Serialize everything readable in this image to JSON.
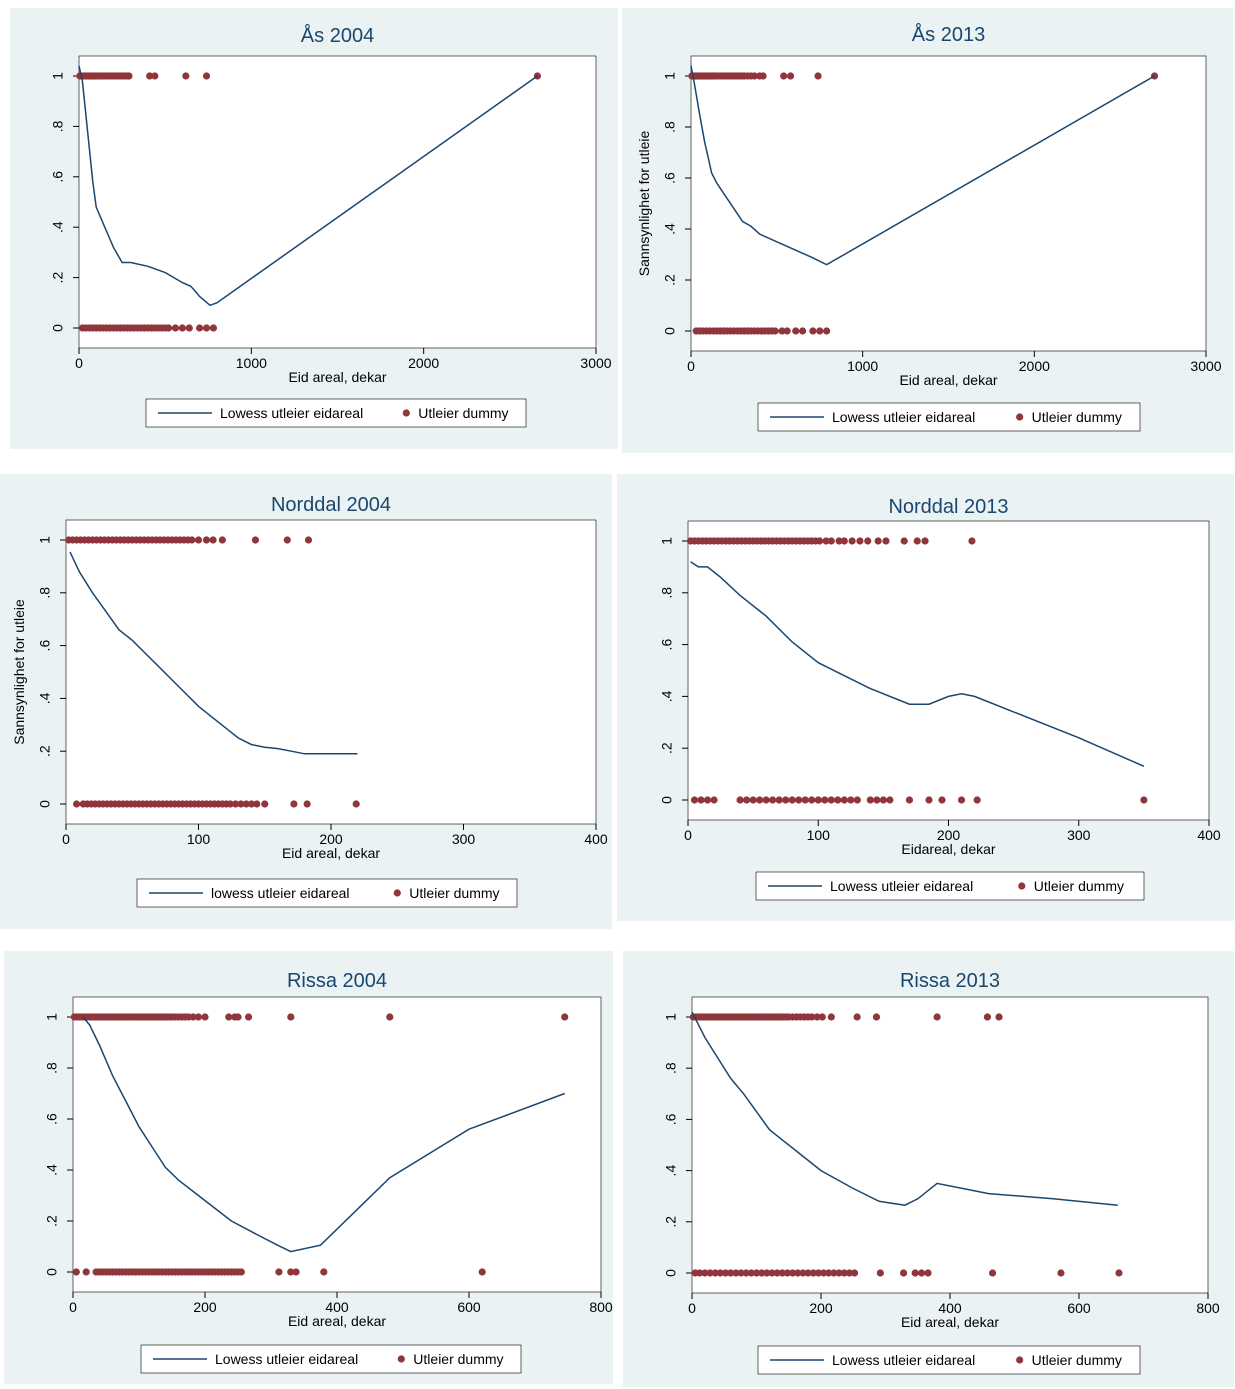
{
  "colors": {
    "background": "#eaf2f3",
    "plot": "#ffffff",
    "line": "#1a476f",
    "dots": "#90353b"
  },
  "chart_data": [
    {
      "type": "scatter",
      "title": "Ås 2004",
      "xlabel": "Eid areal, dekar",
      "ylabel": "",
      "xlim": [
        0,
        3000
      ],
      "ylim": [
        0,
        1
      ],
      "xticks": [
        "0",
        "1000",
        "2000",
        "3000"
      ],
      "yticks": [
        "0",
        ".2",
        ".4",
        ".6",
        ".8",
        "1"
      ],
      "legend": [
        "Lowess utleier eidareal",
        "Utleier dummy"
      ],
      "legend_position": "bottom",
      "line": [
        [
          0,
          1.04
        ],
        [
          20,
          0.98
        ],
        [
          50,
          0.78
        ],
        [
          80,
          0.58
        ],
        [
          100,
          0.48
        ],
        [
          150,
          0.4
        ],
        [
          200,
          0.32
        ],
        [
          250,
          0.26
        ],
        [
          300,
          0.26
        ],
        [
          400,
          0.245
        ],
        [
          500,
          0.22
        ],
        [
          600,
          0.18
        ],
        [
          650,
          0.165
        ],
        [
          700,
          0.125
        ],
        [
          760,
          0.09
        ],
        [
          800,
          0.1
        ],
        [
          2660,
          1.0
        ]
      ],
      "dots_one": [
        5,
        15,
        25,
        35,
        45,
        55,
        65,
        75,
        85,
        95,
        105,
        115,
        125,
        140,
        155,
        170,
        185,
        200,
        215,
        230,
        245,
        260,
        275,
        290,
        410,
        440,
        620,
        740,
        2660
      ],
      "dots_zero": [
        20,
        40,
        60,
        80,
        100,
        120,
        140,
        160,
        180,
        200,
        220,
        240,
        260,
        280,
        300,
        320,
        340,
        360,
        380,
        400,
        420,
        440,
        460,
        480,
        500,
        520,
        560,
        600,
        640,
        700,
        740,
        780
      ]
    },
    {
      "type": "scatter",
      "title": "Ås 2013",
      "xlabel": "Eid areal, dekar",
      "ylabel": "Sannsynlighet for utleie",
      "xlim": [
        0,
        3000
      ],
      "ylim": [
        0,
        1
      ],
      "xticks": [
        "0",
        "1000",
        "2000",
        "3000"
      ],
      "yticks": [
        "0",
        ".2",
        ".4",
        ".6",
        ".8",
        "1"
      ],
      "legend": [
        "Lowess utleier eidareal",
        "Utleier dummy"
      ],
      "legend_position": "bottom",
      "line": [
        [
          0,
          1.04
        ],
        [
          20,
          0.97
        ],
        [
          50,
          0.85
        ],
        [
          80,
          0.74
        ],
        [
          100,
          0.68
        ],
        [
          120,
          0.62
        ],
        [
          150,
          0.58
        ],
        [
          200,
          0.53
        ],
        [
          250,
          0.48
        ],
        [
          300,
          0.43
        ],
        [
          350,
          0.41
        ],
        [
          400,
          0.38
        ],
        [
          500,
          0.35
        ],
        [
          600,
          0.32
        ],
        [
          700,
          0.29
        ],
        [
          790,
          0.26
        ],
        [
          2700,
          1.0
        ]
      ],
      "dots_one": [
        5,
        15,
        25,
        35,
        45,
        55,
        65,
        75,
        85,
        95,
        105,
        115,
        125,
        135,
        145,
        160,
        175,
        190,
        205,
        220,
        235,
        250,
        265,
        280,
        295,
        310,
        330,
        350,
        370,
        400,
        420,
        540,
        580,
        740,
        2700
      ],
      "dots_zero": [
        30,
        50,
        70,
        90,
        110,
        130,
        150,
        170,
        190,
        210,
        230,
        250,
        270,
        290,
        310,
        330,
        350,
        370,
        390,
        410,
        430,
        450,
        470,
        490,
        530,
        560,
        610,
        650,
        710,
        750,
        790
      ]
    },
    {
      "type": "scatter",
      "title": "Norddal 2004",
      "xlabel": "Eid areal, dekar",
      "ylabel": "Sannsynlighet for utleie",
      "xlim": [
        0,
        400
      ],
      "ylim": [
        0,
        1
      ],
      "xticks": [
        "0",
        "100",
        "200",
        "300",
        "400"
      ],
      "yticks": [
        "0",
        ".2",
        ".4",
        ".6",
        ".8",
        "1"
      ],
      "legend": [
        "lowess utleier eidareal",
        "Utleier dummy"
      ],
      "legend_position": "bottom",
      "line": [
        [
          3,
          0.955
        ],
        [
          10,
          0.88
        ],
        [
          20,
          0.8
        ],
        [
          30,
          0.73
        ],
        [
          40,
          0.66
        ],
        [
          50,
          0.62
        ],
        [
          60,
          0.57
        ],
        [
          70,
          0.52
        ],
        [
          80,
          0.47
        ],
        [
          90,
          0.42
        ],
        [
          100,
          0.37
        ],
        [
          110,
          0.33
        ],
        [
          120,
          0.29
        ],
        [
          130,
          0.25
        ],
        [
          140,
          0.225
        ],
        [
          150,
          0.215
        ],
        [
          160,
          0.21
        ],
        [
          170,
          0.2
        ],
        [
          180,
          0.19
        ],
        [
          200,
          0.19
        ],
        [
          220,
          0.19
        ]
      ],
      "dots_one": [
        2,
        5,
        8,
        11,
        14,
        17,
        20,
        23,
        26,
        29,
        32,
        35,
        38,
        41,
        44,
        47,
        50,
        53,
        56,
        59,
        62,
        65,
        68,
        71,
        74,
        77,
        80,
        83,
        86,
        89,
        92,
        95,
        100,
        106,
        111,
        118,
        143,
        167,
        183
      ],
      "dots_zero": [
        8,
        13,
        16,
        19,
        22,
        25,
        28,
        31,
        34,
        37,
        40,
        43,
        46,
        49,
        52,
        55,
        58,
        61,
        64,
        67,
        70,
        73,
        76,
        79,
        82,
        85,
        88,
        91,
        94,
        97,
        100,
        103,
        106,
        109,
        112,
        115,
        118,
        121,
        124,
        128,
        132,
        136,
        140,
        144,
        150,
        172,
        182,
        219
      ]
    },
    {
      "type": "scatter",
      "title": "Norddal 2013",
      "xlabel": "Eidareal, dekar",
      "ylabel": "",
      "xlim": [
        0,
        400
      ],
      "ylim": [
        0,
        1
      ],
      "xticks": [
        "0",
        "100",
        "200",
        "300",
        "400"
      ],
      "yticks": [
        "0",
        ".2",
        ".4",
        ".6",
        ".8",
        "1"
      ],
      "legend": [
        "Lowess utleier eidareal",
        "Utleier dummy"
      ],
      "legend_position": "bottom",
      "line": [
        [
          2,
          0.92
        ],
        [
          8,
          0.9
        ],
        [
          15,
          0.9
        ],
        [
          25,
          0.86
        ],
        [
          40,
          0.79
        ],
        [
          60,
          0.71
        ],
        [
          80,
          0.61
        ],
        [
          100,
          0.53
        ],
        [
          120,
          0.48
        ],
        [
          140,
          0.43
        ],
        [
          160,
          0.39
        ],
        [
          170,
          0.37
        ],
        [
          185,
          0.37
        ],
        [
          200,
          0.4
        ],
        [
          210,
          0.41
        ],
        [
          220,
          0.4
        ],
        [
          250,
          0.34
        ],
        [
          300,
          0.24
        ],
        [
          350,
          0.13
        ]
      ],
      "dots_one": [
        2,
        5,
        8,
        11,
        14,
        17,
        20,
        23,
        26,
        29,
        32,
        35,
        38,
        41,
        44,
        47,
        50,
        53,
        56,
        59,
        62,
        65,
        68,
        71,
        74,
        77,
        80,
        83,
        86,
        89,
        92,
        95,
        98,
        101,
        106,
        110,
        116,
        120,
        126,
        132,
        138,
        146,
        152,
        166,
        176,
        182,
        218
      ],
      "dots_zero": [
        5,
        10,
        15,
        20,
        40,
        45,
        50,
        55,
        60,
        65,
        70,
        75,
        80,
        85,
        90,
        95,
        100,
        105,
        110,
        115,
        120,
        125,
        130,
        140,
        145,
        150,
        155,
        170,
        185,
        195,
        210,
        222,
        350
      ]
    },
    {
      "type": "scatter",
      "title": "Rissa 2004",
      "xlabel": "Eid areal, dekar",
      "ylabel": "",
      "xlim": [
        0,
        800
      ],
      "ylim": [
        0,
        1
      ],
      "xticks": [
        "0",
        "200",
        "400",
        "600",
        "800"
      ],
      "yticks": [
        "0",
        ".2",
        ".4",
        ".6",
        ".8",
        "1"
      ],
      "legend": [
        "Lowess utleier eidareal",
        "Utleier dummy"
      ],
      "legend_position": "bottom",
      "line": [
        [
          15,
          1.0
        ],
        [
          25,
          0.97
        ],
        [
          40,
          0.89
        ],
        [
          60,
          0.77
        ],
        [
          80,
          0.67
        ],
        [
          100,
          0.57
        ],
        [
          120,
          0.49
        ],
        [
          140,
          0.41
        ],
        [
          160,
          0.36
        ],
        [
          180,
          0.32
        ],
        [
          200,
          0.28
        ],
        [
          240,
          0.2
        ],
        [
          280,
          0.145
        ],
        [
          310,
          0.105
        ],
        [
          330,
          0.08
        ],
        [
          375,
          0.105
        ],
        [
          480,
          0.37
        ],
        [
          600,
          0.56
        ],
        [
          745,
          0.7
        ]
      ],
      "dots_one": [
        2,
        6,
        10,
        14,
        18,
        22,
        26,
        30,
        34,
        38,
        42,
        46,
        50,
        54,
        58,
        62,
        66,
        70,
        74,
        78,
        82,
        86,
        90,
        94,
        98,
        102,
        106,
        110,
        114,
        118,
        122,
        126,
        130,
        134,
        138,
        142,
        146,
        150,
        155,
        160,
        165,
        170,
        175,
        182,
        190,
        200,
        236,
        245,
        250,
        266,
        330,
        480,
        745
      ],
      "dots_zero": [
        5,
        20,
        35,
        40,
        45,
        50,
        55,
        60,
        65,
        70,
        75,
        80,
        85,
        90,
        95,
        100,
        105,
        110,
        115,
        120,
        125,
        130,
        135,
        140,
        145,
        150,
        155,
        160,
        165,
        170,
        175,
        180,
        185,
        190,
        195,
        200,
        205,
        210,
        215,
        220,
        225,
        230,
        235,
        240,
        245,
        250,
        255,
        312,
        330,
        338,
        380,
        620
      ]
    },
    {
      "type": "scatter",
      "title": "Rissa 2013",
      "xlabel": "Eid areal, dekar",
      "ylabel": "",
      "xlim": [
        0,
        800
      ],
      "ylim": [
        0,
        1
      ],
      "xticks": [
        "0",
        "200",
        "400",
        "600",
        "800"
      ],
      "yticks": [
        "0",
        ".2",
        ".4",
        ".6",
        ".8",
        "1"
      ],
      "legend": [
        "Lowess utleier eidareal",
        "Utleier dummy"
      ],
      "legend_position": "bottom",
      "line": [
        [
          0,
          1.02
        ],
        [
          20,
          0.92
        ],
        [
          40,
          0.84
        ],
        [
          60,
          0.76
        ],
        [
          80,
          0.7
        ],
        [
          100,
          0.63
        ],
        [
          120,
          0.56
        ],
        [
          140,
          0.52
        ],
        [
          160,
          0.48
        ],
        [
          200,
          0.4
        ],
        [
          250,
          0.33
        ],
        [
          290,
          0.28
        ],
        [
          330,
          0.265
        ],
        [
          350,
          0.29
        ],
        [
          380,
          0.35
        ],
        [
          460,
          0.31
        ],
        [
          560,
          0.29
        ],
        [
          660,
          0.265
        ]
      ],
      "dots_one": [
        2,
        6,
        10,
        14,
        18,
        22,
        26,
        30,
        34,
        38,
        42,
        46,
        50,
        54,
        58,
        62,
        66,
        70,
        74,
        78,
        82,
        86,
        90,
        94,
        98,
        102,
        106,
        110,
        114,
        118,
        122,
        126,
        130,
        134,
        138,
        142,
        146,
        150,
        156,
        162,
        168,
        174,
        180,
        186,
        194,
        202,
        216,
        256,
        286,
        380,
        458,
        476
      ],
      "dots_zero": [
        5,
        12,
        20,
        28,
        36,
        44,
        52,
        60,
        68,
        76,
        84,
        92,
        100,
        108,
        116,
        124,
        132,
        140,
        148,
        156,
        164,
        172,
        180,
        188,
        196,
        204,
        212,
        220,
        228,
        236,
        244,
        252,
        292,
        328,
        346,
        356,
        366,
        466,
        572,
        662
      ]
    }
  ]
}
